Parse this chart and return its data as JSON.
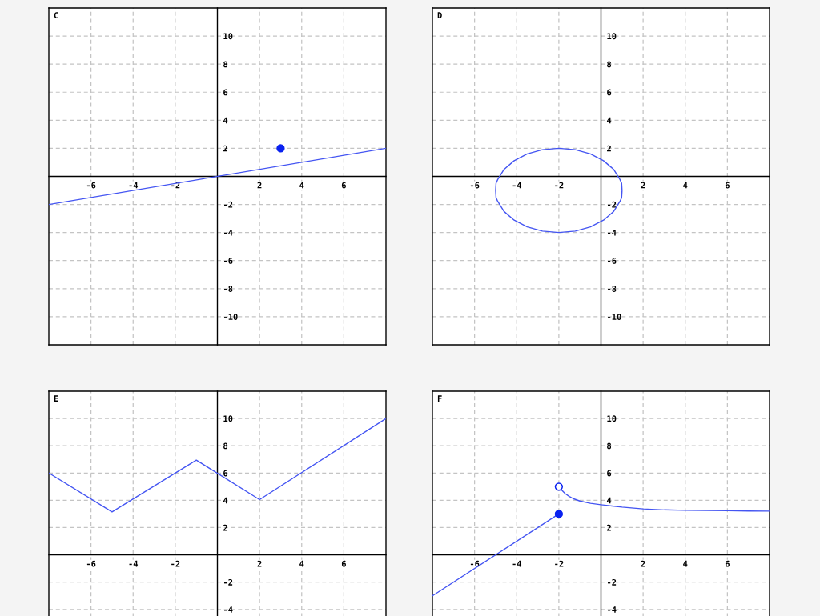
{
  "chart_data": [
    {
      "type": "line",
      "title": "C",
      "xlim": [
        -8,
        8
      ],
      "ylim": [
        -12,
        12
      ],
      "xticks": [
        -6,
        -4,
        -2,
        2,
        4,
        6
      ],
      "yticks": [
        10,
        8,
        6,
        4,
        2,
        -2,
        -4,
        -6,
        -8,
        -10
      ],
      "grid": true,
      "series": [
        {
          "color": "#4455f2",
          "x": [
            -8,
            8
          ],
          "values": [
            -2,
            2
          ]
        },
        {
          "type": "scatter",
          "marker": "circle",
          "color": "#0a22f0",
          "x": [
            3
          ],
          "values": [
            2
          ]
        }
      ]
    },
    {
      "type": "line",
      "title": "D",
      "xlim": [
        -8,
        8
      ],
      "ylim": [
        -12,
        12
      ],
      "xticks": [
        -6,
        -4,
        -2,
        2,
        4,
        6
      ],
      "yticks": [
        10,
        8,
        6,
        4,
        2,
        -2,
        -4,
        -6,
        -8,
        -10
      ],
      "grid": true,
      "series": [
        {
          "color": "#4455f2",
          "x": [
            -5,
            -4.98,
            -4.9,
            -4.6,
            -4.12,
            -3.5,
            -2.78,
            -2,
            -1.22,
            -0.5,
            0.12,
            0.6,
            0.9,
            0.98,
            1,
            null,
            -5,
            -4.98,
            -4.9,
            -4.6,
            -4.12,
            -3.5,
            -2.78,
            -2,
            -1.22,
            -0.5,
            0.12,
            0.6,
            0.9,
            0.98,
            1
          ],
          "values": [
            -1,
            -0.48,
            -0.22,
            0.5,
            1.12,
            1.6,
            1.9,
            2,
            1.9,
            1.6,
            1.12,
            0.5,
            -0.22,
            -0.48,
            -1,
            null,
            -1,
            -1.52,
            -1.78,
            -2.5,
            -3.12,
            -3.6,
            -3.9,
            -4,
            -3.9,
            -3.6,
            -3.12,
            -2.5,
            -1.78,
            -1.52,
            -1
          ]
        }
      ]
    },
    {
      "type": "line",
      "title": "E",
      "xlim": [
        -8,
        8
      ],
      "ylim": [
        -4.6,
        12
      ],
      "xticks": [
        -6,
        -4,
        -2,
        2,
        4,
        6
      ],
      "yticks": [
        10,
        8,
        6,
        4,
        2,
        -2,
        -4
      ],
      "grid": true,
      "series": [
        {
          "color": "#4455f2",
          "x": [
            -8,
            -5,
            -1,
            2,
            8
          ],
          "values": [
            6,
            3.15,
            6.95,
            4.05,
            10
          ]
        }
      ]
    },
    {
      "type": "line",
      "title": "F",
      "xlim": [
        -8,
        8
      ],
      "ylim": [
        -4.6,
        12
      ],
      "xticks": [
        -6,
        -4,
        -2,
        2,
        4,
        6
      ],
      "yticks": [
        10,
        8,
        6,
        4,
        2,
        -2,
        -4
      ],
      "grid": true,
      "series": [
        {
          "color": "#4455f2",
          "x": [
            -8,
            -2
          ],
          "values": [
            -3,
            3
          ]
        },
        {
          "color": "#4455f2",
          "x": [
            -2,
            -1.85,
            -1.7,
            -1.5,
            -1.3,
            -1,
            -0.5,
            0,
            1,
            2,
            3,
            4,
            5,
            6,
            7,
            8
          ],
          "values": [
            5,
            4.72,
            4.49,
            4.28,
            4.11,
            3.95,
            3.78,
            3.68,
            3.5,
            3.37,
            3.3,
            3.27,
            3.25,
            3.24,
            3.22,
            3.21
          ]
        },
        {
          "type": "scatter",
          "marker": "circle",
          "color": "#0a22f0",
          "x": [
            -2
          ],
          "values": [
            3
          ]
        },
        {
          "type": "scatter",
          "marker": "circle",
          "color": "#0a22f0",
          "colors": [
            "#ffffff"
          ],
          "x": [
            -2
          ],
          "values": [
            5
          ]
        }
      ]
    }
  ]
}
